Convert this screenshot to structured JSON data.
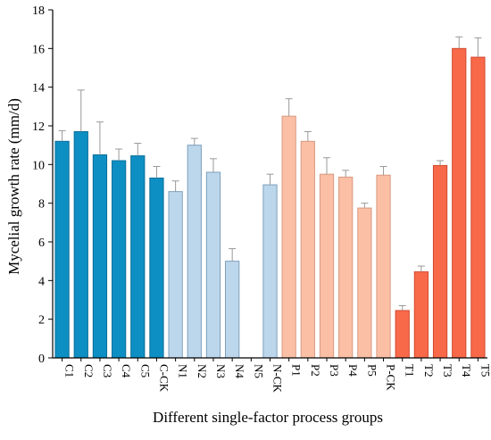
{
  "chart_data": {
    "type": "bar",
    "title": "",
    "xlabel": "Different single-factor process groups",
    "ylabel": "Mycelial growth rate (mm/d)",
    "ylim": [
      0,
      18
    ],
    "yticks": [
      0,
      2,
      4,
      6,
      8,
      10,
      12,
      14,
      16,
      18
    ],
    "grid": false,
    "legend": "none",
    "categories": [
      "C1",
      "C2",
      "C3",
      "C4",
      "C5",
      "C-CK",
      "N1",
      "N2",
      "N3",
      "N4",
      "N5",
      "N-CK",
      "P1",
      "P2",
      "P3",
      "P4",
      "P5",
      "P-CK",
      "T1",
      "T2",
      "T3",
      "T4",
      "T5"
    ],
    "values": [
      11.2,
      11.7,
      10.5,
      10.2,
      10.45,
      9.3,
      8.6,
      11.0,
      9.6,
      5.0,
      0,
      8.95,
      12.5,
      11.2,
      9.5,
      9.35,
      7.75,
      9.45,
      2.45,
      4.45,
      9.95,
      16.0,
      15.55
    ],
    "errors": [
      0.55,
      2.15,
      1.7,
      0.6,
      0.65,
      0.6,
      0.55,
      0.35,
      0.7,
      0.65,
      0,
      0.55,
      0.9,
      0.5,
      0.85,
      0.35,
      0.25,
      0.45,
      0.25,
      0.3,
      0.25,
      0.6,
      1.0
    ],
    "groups": [
      {
        "name": "C",
        "fill": "#0d8fc4",
        "stroke": "#0b6f98",
        "count": 6
      },
      {
        "name": "N",
        "fill": "#bcd7ec",
        "stroke": "#7d9fbb",
        "count": 6
      },
      {
        "name": "P",
        "fill": "#fbbfa5",
        "stroke": "#d99a80",
        "count": 6
      },
      {
        "name": "T",
        "fill": "#f8694a",
        "stroke": "#d24a2e",
        "count": 5
      }
    ],
    "error_color": "#999999"
  }
}
